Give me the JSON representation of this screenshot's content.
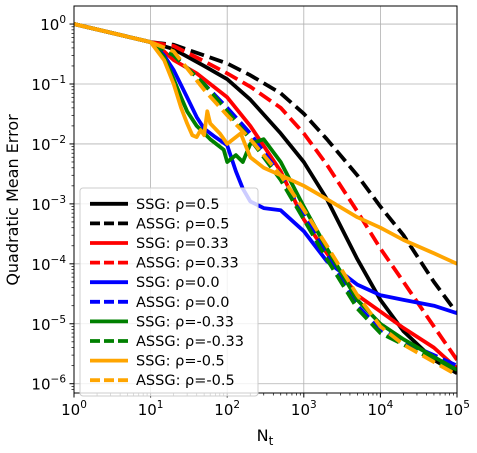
{
  "chart_data": {
    "type": "line",
    "xlabel": "N",
    "xlabel_sub": "t",
    "ylabel": "Quadratic Mean Error",
    "xscale": "log",
    "yscale": "log",
    "xlim": [
      1,
      100000
    ],
    "ylim": [
      7e-07,
      2
    ],
    "grid": true,
    "legend_placement": "lower-left",
    "x_ticks": [
      {
        "value": 1,
        "base": "10",
        "exp": "0"
      },
      {
        "value": 10,
        "base": "10",
        "exp": "1"
      },
      {
        "value": 100,
        "base": "10",
        "exp": "2"
      },
      {
        "value": 1000,
        "base": "10",
        "exp": "3"
      },
      {
        "value": 10000,
        "base": "10",
        "exp": "4"
      },
      {
        "value": 100000,
        "base": "10",
        "exp": "5"
      }
    ],
    "y_ticks": [
      {
        "value": 1,
        "base": "10",
        "exp": "0"
      },
      {
        "value": 0.1,
        "base": "10",
        "exp": "−1"
      },
      {
        "value": 0.01,
        "base": "10",
        "exp": "−2"
      },
      {
        "value": 0.001,
        "base": "10",
        "exp": "−3"
      },
      {
        "value": 0.0001,
        "base": "10",
        "exp": "−4"
      },
      {
        "value": 1e-05,
        "base": "10",
        "exp": "−5"
      },
      {
        "value": 1e-06,
        "base": "10",
        "exp": "−6"
      }
    ],
    "series": [
      {
        "name": "SSG: ρ=0.5",
        "color": "#000000",
        "dash": "solid",
        "points": [
          [
            1,
            1.0
          ],
          [
            10,
            0.5
          ],
          [
            20,
            0.38
          ],
          [
            50,
            0.2
          ],
          [
            100,
            0.12
          ],
          [
            200,
            0.055
          ],
          [
            500,
            0.015
          ],
          [
            1000,
            0.005
          ],
          [
            2000,
            0.0012
          ],
          [
            5000,
            0.00012
          ],
          [
            10000,
            2.5e-05
          ],
          [
            20000,
            7.5e-06
          ],
          [
            50000,
            2.5e-06
          ],
          [
            100000,
            1.5e-06
          ]
        ]
      },
      {
        "name": "ASSG: ρ=0.5",
        "color": "#000000",
        "dash": "dashed",
        "points": [
          [
            1,
            1.0
          ],
          [
            10,
            0.5
          ],
          [
            20,
            0.45
          ],
          [
            50,
            0.3
          ],
          [
            100,
            0.22
          ],
          [
            200,
            0.14
          ],
          [
            500,
            0.07
          ],
          [
            1000,
            0.032
          ],
          [
            2000,
            0.012
          ],
          [
            5000,
            0.003
          ],
          [
            10000,
            0.0009
          ],
          [
            20000,
            0.0003
          ],
          [
            50000,
            5e-05
          ],
          [
            100000,
            1.5e-05
          ]
        ]
      },
      {
        "name": "SSG: ρ=0.33",
        "color": "#ff0000",
        "dash": "solid",
        "points": [
          [
            1,
            1.0
          ],
          [
            10,
            0.5
          ],
          [
            15,
            0.35
          ],
          [
            20,
            0.25
          ],
          [
            40,
            0.15
          ],
          [
            100,
            0.06
          ],
          [
            200,
            0.02
          ],
          [
            500,
            0.0035
          ],
          [
            1000,
            0.00055
          ],
          [
            2000,
            0.00015
          ],
          [
            5000,
            3e-05
          ],
          [
            10000,
            1.6e-05
          ],
          [
            20000,
            8.5e-06
          ],
          [
            50000,
            4e-06
          ],
          [
            100000,
            1.8e-06
          ]
        ]
      },
      {
        "name": "ASSG: ρ=0.33",
        "color": "#ff0000",
        "dash": "dashed",
        "points": [
          [
            1,
            1.0
          ],
          [
            10,
            0.5
          ],
          [
            20,
            0.43
          ],
          [
            50,
            0.24
          ],
          [
            100,
            0.15
          ],
          [
            200,
            0.09
          ],
          [
            500,
            0.04
          ],
          [
            1000,
            0.015
          ],
          [
            2000,
            0.0045
          ],
          [
            5000,
            0.00075
          ],
          [
            10000,
            0.00018
          ],
          [
            20000,
            5e-05
          ],
          [
            50000,
            9e-06
          ],
          [
            100000,
            2.5e-06
          ]
        ]
      },
      {
        "name": "SSG: ρ=0.0",
        "color": "#0000ff",
        "dash": "solid",
        "points": [
          [
            1,
            1.0
          ],
          [
            10,
            0.5
          ],
          [
            15,
            0.3
          ],
          [
            20,
            0.17
          ],
          [
            30,
            0.06
          ],
          [
            40,
            0.028
          ],
          [
            50,
            0.018
          ],
          [
            70,
            0.013
          ],
          [
            100,
            0.0095
          ],
          [
            130,
            0.0035
          ],
          [
            160,
            0.0018
          ],
          [
            200,
            0.0011
          ],
          [
            300,
            0.00085
          ],
          [
            500,
            0.00078
          ],
          [
            1000,
            0.00035
          ],
          [
            2000,
            0.00011
          ],
          [
            5000,
            4.5e-05
          ],
          [
            10000,
            3e-05
          ],
          [
            20000,
            2.5e-05
          ],
          [
            50000,
            2e-05
          ],
          [
            100000,
            1.5e-05
          ]
        ]
      },
      {
        "name": "ASSG: ρ=0.0",
        "color": "#0000ff",
        "dash": "dashed",
        "points": [
          [
            1,
            1.0
          ],
          [
            10,
            0.5
          ],
          [
            20,
            0.3
          ],
          [
            50,
            0.1
          ],
          [
            100,
            0.04
          ],
          [
            200,
            0.015
          ],
          [
            500,
            0.003
          ],
          [
            1000,
            0.00065
          ],
          [
            2000,
            0.00015
          ],
          [
            5000,
            2e-05
          ],
          [
            10000,
            8e-06
          ],
          [
            20000,
            5e-06
          ],
          [
            50000,
            3e-06
          ],
          [
            100000,
            2e-06
          ]
        ]
      },
      {
        "name": "SSG: ρ=-0.33",
        "color": "#008000",
        "dash": "solid",
        "points": [
          [
            1,
            1.0
          ],
          [
            10,
            0.5
          ],
          [
            15,
            0.28
          ],
          [
            20,
            0.12
          ],
          [
            25,
            0.06
          ],
          [
            30,
            0.035
          ],
          [
            40,
            0.02
          ],
          [
            60,
            0.012
          ],
          [
            90,
            0.008
          ],
          [
            100,
            0.005
          ],
          [
            130,
            0.0065
          ],
          [
            160,
            0.005
          ],
          [
            200,
            0.01
          ],
          [
            300,
            0.012
          ],
          [
            500,
            0.005
          ],
          [
            1000,
            0.0009
          ],
          [
            2000,
            0.00018
          ],
          [
            5000,
            2.5e-05
          ],
          [
            10000,
            1e-05
          ],
          [
            20000,
            5.5e-06
          ],
          [
            50000,
            2.8e-06
          ],
          [
            100000,
            1.7e-06
          ]
        ]
      },
      {
        "name": "ASSG: ρ=-0.33",
        "color": "#008000",
        "dash": "dashed",
        "points": [
          [
            1,
            1.0
          ],
          [
            10,
            0.5
          ],
          [
            20,
            0.3
          ],
          [
            50,
            0.1
          ],
          [
            100,
            0.035
          ],
          [
            200,
            0.012
          ],
          [
            500,
            0.0025
          ],
          [
            1000,
            0.00055
          ],
          [
            2000,
            0.00012
          ],
          [
            5000,
            1.8e-05
          ],
          [
            10000,
            7e-06
          ],
          [
            20000,
            4.5e-06
          ],
          [
            50000,
            2.5e-06
          ],
          [
            100000,
            1.6e-06
          ]
        ]
      },
      {
        "name": "SSG: ρ=-0.5",
        "color": "#ffa500",
        "dash": "solid",
        "points": [
          [
            1,
            1.0
          ],
          [
            10,
            0.5
          ],
          [
            15,
            0.25
          ],
          [
            20,
            0.1
          ],
          [
            25,
            0.04
          ],
          [
            30,
            0.022
          ],
          [
            35,
            0.014
          ],
          [
            40,
            0.013
          ],
          [
            45,
            0.017
          ],
          [
            50,
            0.014
          ],
          [
            55,
            0.035
          ],
          [
            60,
            0.022
          ],
          [
            80,
            0.015
          ],
          [
            100,
            0.01
          ],
          [
            150,
            0.015
          ],
          [
            200,
            0.006
          ],
          [
            300,
            0.004
          ],
          [
            500,
            0.003
          ],
          [
            1000,
            0.002
          ],
          [
            2000,
            0.0012
          ],
          [
            5000,
            0.0006
          ],
          [
            10000,
            0.0004
          ],
          [
            20000,
            0.00025
          ],
          [
            50000,
            0.00015
          ],
          [
            100000,
            0.0001
          ]
        ]
      },
      {
        "name": "ASSG: ρ=-0.5",
        "color": "#ffa500",
        "dash": "dashed",
        "points": [
          [
            1,
            1.0
          ],
          [
            10,
            0.5
          ],
          [
            20,
            0.35
          ],
          [
            50,
            0.08
          ],
          [
            100,
            0.03
          ],
          [
            200,
            0.012
          ],
          [
            500,
            0.003
          ],
          [
            1000,
            0.0008
          ],
          [
            2000,
            0.0002
          ],
          [
            5000,
            3e-05
          ],
          [
            10000,
            9e-06
          ],
          [
            20000,
            4.5e-06
          ],
          [
            50000,
            2.3e-06
          ],
          [
            100000,
            1.4e-06
          ]
        ]
      }
    ]
  }
}
